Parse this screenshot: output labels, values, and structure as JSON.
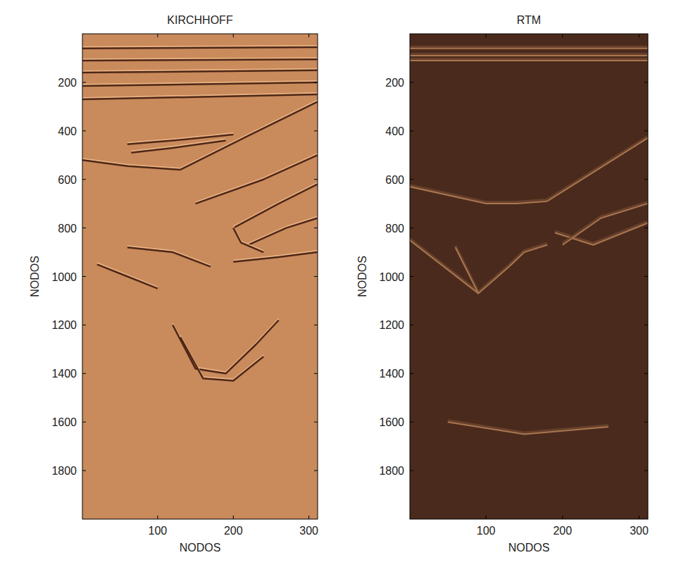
{
  "chart_data": [
    {
      "type": "image",
      "title": "KIRCHHOFF",
      "xlabel": "NODOS",
      "ylabel": "NODOS",
      "xlim": [
        0.5,
        311.5
      ],
      "ylim": [
        0,
        2000
      ],
      "xticks": [
        100,
        200,
        300
      ],
      "yticks": [
        200,
        400,
        600,
        800,
        1000,
        1200,
        1400,
        1600,
        1800
      ],
      "color": "#c98a5c",
      "series": [
        {
          "x": [
            0,
            311
          ],
          "values": [
            60,
            55
          ]
        },
        {
          "x": [
            0,
            311
          ],
          "values": [
            110,
            105
          ]
        },
        {
          "x": [
            0,
            311
          ],
          "values": [
            160,
            150
          ]
        },
        {
          "x": [
            0,
            311
          ],
          "values": [
            215,
            200
          ]
        },
        {
          "x": [
            0,
            311
          ],
          "values": [
            270,
            250
          ]
        },
        {
          "x": [
            0,
            60,
            130
          ],
          "values": [
            520,
            545,
            560
          ]
        },
        {
          "x": [
            60,
            120,
            200
          ],
          "values": [
            455,
            440,
            415
          ]
        },
        {
          "x": [
            65,
            120,
            190
          ],
          "values": [
            490,
            470,
            440
          ]
        },
        {
          "x": [
            130,
            220,
            311
          ],
          "values": [
            560,
            420,
            280
          ]
        },
        {
          "x": [
            150,
            240,
            311
          ],
          "values": [
            700,
            600,
            500
          ]
        },
        {
          "x": [
            200,
            260,
            311
          ],
          "values": [
            800,
            700,
            620
          ]
        },
        {
          "x": [
            220,
            270,
            311
          ],
          "values": [
            870,
            800,
            760
          ]
        },
        {
          "x": [
            200,
            260,
            311
          ],
          "values": [
            940,
            920,
            900
          ]
        },
        {
          "x": [
            20,
            60,
            100
          ],
          "values": [
            950,
            1000,
            1050
          ]
        },
        {
          "x": [
            60,
            120,
            170
          ],
          "values": [
            880,
            900,
            960
          ]
        },
        {
          "x": [
            200,
            210,
            240
          ],
          "values": [
            800,
            860,
            900
          ]
        },
        {
          "x": [
            120,
            150,
            190,
            230,
            260
          ],
          "values": [
            1200,
            1380,
            1400,
            1280,
            1180
          ]
        },
        {
          "x": [
            130,
            160,
            200,
            240
          ],
          "values": [
            1250,
            1420,
            1430,
            1330
          ]
        }
      ]
    },
    {
      "type": "image",
      "title": "RTM",
      "xlabel": "NODOS",
      "ylabel": "NODOS",
      "xlim": [
        0.5,
        311.5
      ],
      "ylim": [
        0,
        2000
      ],
      "xticks": [
        100,
        200,
        300
      ],
      "yticks": [
        200,
        400,
        600,
        800,
        1000,
        1200,
        1400,
        1600,
        1800
      ],
      "color": "#4a2a1c",
      "series": [
        {
          "x": [
            0,
            311
          ],
          "values": [
            60,
            60
          ]
        },
        {
          "x": [
            0,
            311
          ],
          "values": [
            90,
            90
          ]
        },
        {
          "x": [
            0,
            311
          ],
          "values": [
            110,
            110
          ]
        },
        {
          "x": [
            0,
            100,
            140,
            180
          ],
          "values": [
            630,
            700,
            700,
            690
          ]
        },
        {
          "x": [
            180,
            311
          ],
          "values": [
            690,
            430
          ]
        },
        {
          "x": [
            0,
            90
          ],
          "values": [
            850,
            1070
          ]
        },
        {
          "x": [
            60,
            90,
            130
          ],
          "values": [
            880,
            1070,
            960
          ]
        },
        {
          "x": [
            130,
            150,
            180
          ],
          "values": [
            960,
            900,
            870
          ]
        },
        {
          "x": [
            190,
            240,
            311
          ],
          "values": [
            820,
            870,
            780
          ]
        },
        {
          "x": [
            200,
            250,
            311
          ],
          "values": [
            870,
            760,
            700
          ]
        },
        {
          "x": [
            50,
            150,
            260
          ],
          "values": [
            1600,
            1650,
            1620
          ]
        }
      ]
    }
  ]
}
